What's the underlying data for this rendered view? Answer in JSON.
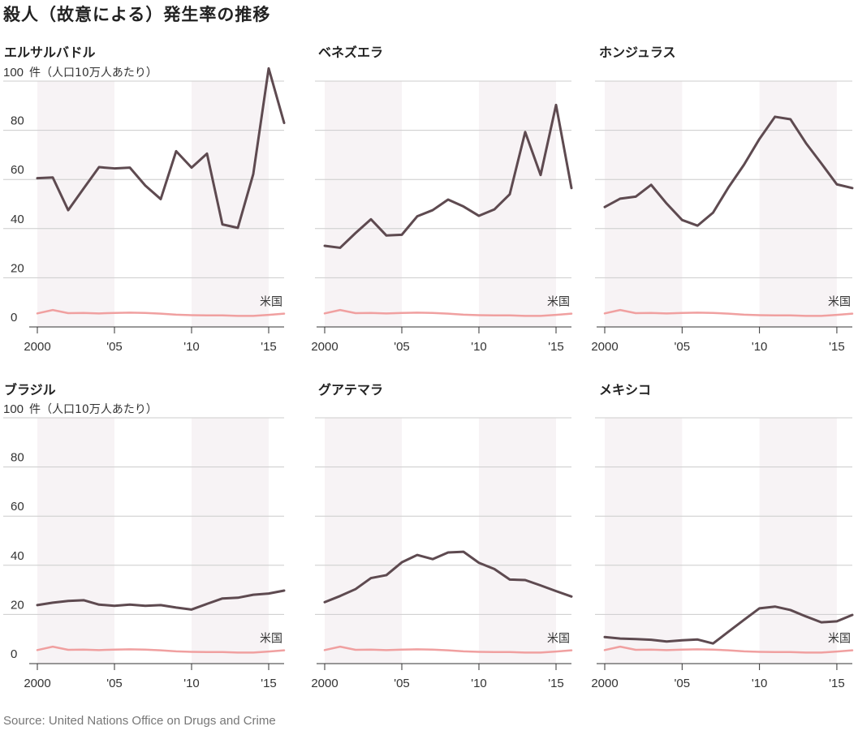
{
  "title": "殺人（故意による）発生率の推移",
  "source": "Source: United Nations Office on Drugs and Crime",
  "unit_label": "件（人口10万人あたり）",
  "colors": {
    "country": "#5e4a50",
    "us": "#f0a0a0",
    "shade": "#f7f3f5",
    "grid": "#cccccc",
    "axis": "#333333"
  },
  "chart_data": [
    {
      "type": "line",
      "title": "エルサルバドル",
      "x": [
        2000,
        2001,
        2002,
        2003,
        2004,
        2005,
        2006,
        2007,
        2008,
        2009,
        2010,
        2011,
        2012,
        2013,
        2014,
        2015,
        2016
      ],
      "series": [
        {
          "values": [
            60.5,
            60.8,
            47.5,
            56.3,
            65,
            64.5,
            64.8,
            57.5,
            52,
            71.5,
            64.8,
            70.5,
            41.7,
            40.3,
            62.2,
            105.2,
            83
          ]
        },
        {
          "name": "米国",
          "values": [
            5.5,
            6.9,
            5.6,
            5.7,
            5.5,
            5.7,
            5.8,
            5.7,
            5.4,
            5.0,
            4.8,
            4.7,
            4.7,
            4.5,
            4.5,
            4.9,
            5.4
          ]
        }
      ],
      "x_tick_labels": [
        "2000",
        "'05",
        "'10",
        "'15"
      ],
      "y_ticks": [
        0,
        20,
        40,
        60,
        80,
        100
      ],
      "ylim": [
        0,
        100
      ],
      "shaded_x_ranges": [
        [
          2000,
          2005
        ],
        [
          2010,
          2015
        ]
      ]
    },
    {
      "type": "line",
      "title": "ベネズエラ",
      "x": [
        2000,
        2001,
        2002,
        2003,
        2004,
        2005,
        2006,
        2007,
        2008,
        2009,
        2010,
        2011,
        2012,
        2013,
        2014,
        2015,
        2016
      ],
      "series": [
        {
          "values": [
            33,
            32.2,
            38.2,
            43.8,
            37.2,
            37.5,
            45,
            47.5,
            51.8,
            49,
            45.2,
            47.8,
            54,
            79.3,
            61.8,
            90.3,
            56.5
          ]
        },
        {
          "name": "米国",
          "values": [
            5.5,
            6.9,
            5.6,
            5.7,
            5.5,
            5.7,
            5.8,
            5.7,
            5.4,
            5.0,
            4.8,
            4.7,
            4.7,
            4.5,
            4.5,
            4.9,
            5.4
          ]
        }
      ],
      "x_tick_labels": [
        "2000",
        "'05",
        "'10",
        "'15"
      ],
      "y_ticks": [
        0,
        20,
        40,
        60,
        80,
        100
      ],
      "ylim": [
        0,
        100
      ],
      "shaded_x_ranges": [
        [
          2000,
          2005
        ],
        [
          2010,
          2015
        ]
      ]
    },
    {
      "type": "line",
      "title": "ホンジュラス",
      "x": [
        2000,
        2001,
        2002,
        2003,
        2004,
        2005,
        2006,
        2007,
        2008,
        2009,
        2010,
        2011,
        2012,
        2013,
        2014,
        2015,
        2016
      ],
      "series": [
        {
          "values": [
            48.8,
            52.2,
            53,
            57.8,
            50.2,
            43.5,
            41.2,
            46.5,
            56.8,
            66,
            76.5,
            85.5,
            84.5,
            74.8,
            66.5,
            58,
            56.5
          ]
        },
        {
          "name": "米国",
          "values": [
            5.5,
            6.9,
            5.6,
            5.7,
            5.5,
            5.7,
            5.8,
            5.7,
            5.4,
            5.0,
            4.8,
            4.7,
            4.7,
            4.5,
            4.5,
            4.9,
            5.4
          ]
        }
      ],
      "x_tick_labels": [
        "2000",
        "'05",
        "'10",
        "'15"
      ],
      "y_ticks": [
        0,
        20,
        40,
        60,
        80,
        100
      ],
      "ylim": [
        0,
        100
      ],
      "shaded_x_ranges": [
        [
          2000,
          2005
        ],
        [
          2010,
          2015
        ]
      ]
    },
    {
      "type": "line",
      "title": "ブラジル",
      "x": [
        2000,
        2001,
        2002,
        2003,
        2004,
        2005,
        2006,
        2007,
        2008,
        2009,
        2010,
        2011,
        2012,
        2013,
        2014,
        2015,
        2016
      ],
      "series": [
        {
          "values": [
            23.8,
            24.8,
            25.5,
            25.8,
            24,
            23.5,
            24,
            23.5,
            23.8,
            22.8,
            22,
            24.3,
            26.5,
            26.8,
            28,
            28.5,
            29.7
          ]
        },
        {
          "name": "米国",
          "values": [
            5.5,
            6.9,
            5.6,
            5.7,
            5.5,
            5.7,
            5.8,
            5.7,
            5.4,
            5.0,
            4.8,
            4.7,
            4.7,
            4.5,
            4.5,
            4.9,
            5.4
          ]
        }
      ],
      "x_tick_labels": [
        "2000",
        "'05",
        "'10",
        "'15"
      ],
      "y_ticks": [
        0,
        20,
        40,
        60,
        80,
        100
      ],
      "ylim": [
        0,
        100
      ],
      "shaded_x_ranges": [
        [
          2000,
          2005
        ],
        [
          2010,
          2015
        ]
      ]
    },
    {
      "type": "line",
      "title": "グアテマラ",
      "x": [
        2000,
        2001,
        2002,
        2003,
        2004,
        2005,
        2006,
        2007,
        2008,
        2009,
        2010,
        2011,
        2012,
        2013,
        2014,
        2015,
        2016
      ],
      "series": [
        {
          "values": [
            25,
            27.5,
            30.3,
            34.8,
            36,
            41.2,
            44.2,
            42.5,
            45.2,
            45.5,
            41,
            38.5,
            34.2,
            34,
            31.8,
            29.5,
            27.3
          ]
        },
        {
          "name": "米国",
          "values": [
            5.5,
            6.9,
            5.6,
            5.7,
            5.5,
            5.7,
            5.8,
            5.7,
            5.4,
            5.0,
            4.8,
            4.7,
            4.7,
            4.5,
            4.5,
            4.9,
            5.4
          ]
        }
      ],
      "x_tick_labels": [
        "2000",
        "'05",
        "'10",
        "'15"
      ],
      "y_ticks": [
        0,
        20,
        40,
        60,
        80,
        100
      ],
      "ylim": [
        0,
        100
      ],
      "shaded_x_ranges": [
        [
          2000,
          2005
        ],
        [
          2010,
          2015
        ]
      ]
    },
    {
      "type": "line",
      "title": "メキシコ",
      "x": [
        2000,
        2001,
        2002,
        2003,
        2004,
        2005,
        2006,
        2007,
        2008,
        2009,
        2010,
        2011,
        2012,
        2013,
        2014,
        2015,
        2016
      ],
      "series": [
        {
          "values": [
            10.8,
            10.2,
            10,
            9.7,
            9,
            9.5,
            9.8,
            8.2,
            13,
            17.8,
            22.5,
            23.2,
            21.8,
            19.2,
            16.8,
            17.2,
            19.8
          ]
        },
        {
          "name": "米国",
          "values": [
            5.5,
            6.9,
            5.6,
            5.7,
            5.5,
            5.7,
            5.8,
            5.7,
            5.4,
            5.0,
            4.8,
            4.7,
            4.7,
            4.5,
            4.5,
            4.9,
            5.4
          ]
        }
      ],
      "x_tick_labels": [
        "2000",
        "'05",
        "'10",
        "'15"
      ],
      "y_ticks": [
        0,
        20,
        40,
        60,
        80,
        100
      ],
      "ylim": [
        0,
        100
      ],
      "shaded_x_ranges": [
        [
          2000,
          2005
        ],
        [
          2010,
          2015
        ]
      ]
    }
  ]
}
